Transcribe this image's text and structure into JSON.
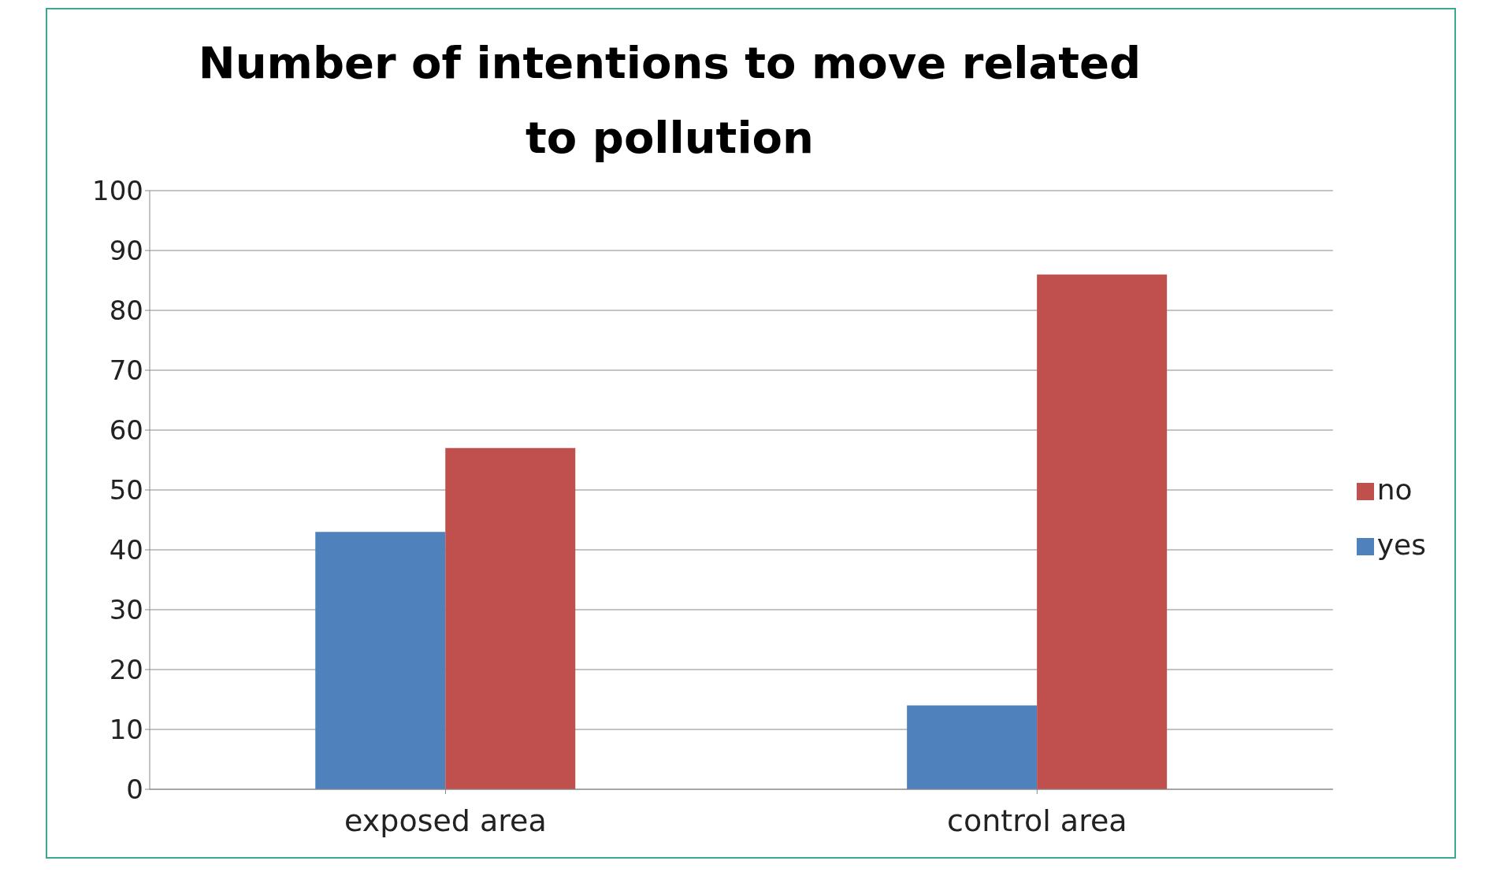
{
  "chart_data": {
    "type": "bar",
    "title": "Number of intentions to move related to pollution",
    "categories": [
      "exposed area",
      "control area"
    ],
    "series": [
      {
        "name": "yes",
        "color": "#4f81bd",
        "values": [
          43,
          14
        ]
      },
      {
        "name": "no",
        "color": "#c0504d",
        "values": [
          57,
          86
        ]
      }
    ],
    "ylim": [
      0,
      100
    ],
    "yticks": [
      0,
      10,
      20,
      30,
      40,
      50,
      60,
      70,
      80,
      90,
      100
    ],
    "grid": "y",
    "legend": "right"
  }
}
